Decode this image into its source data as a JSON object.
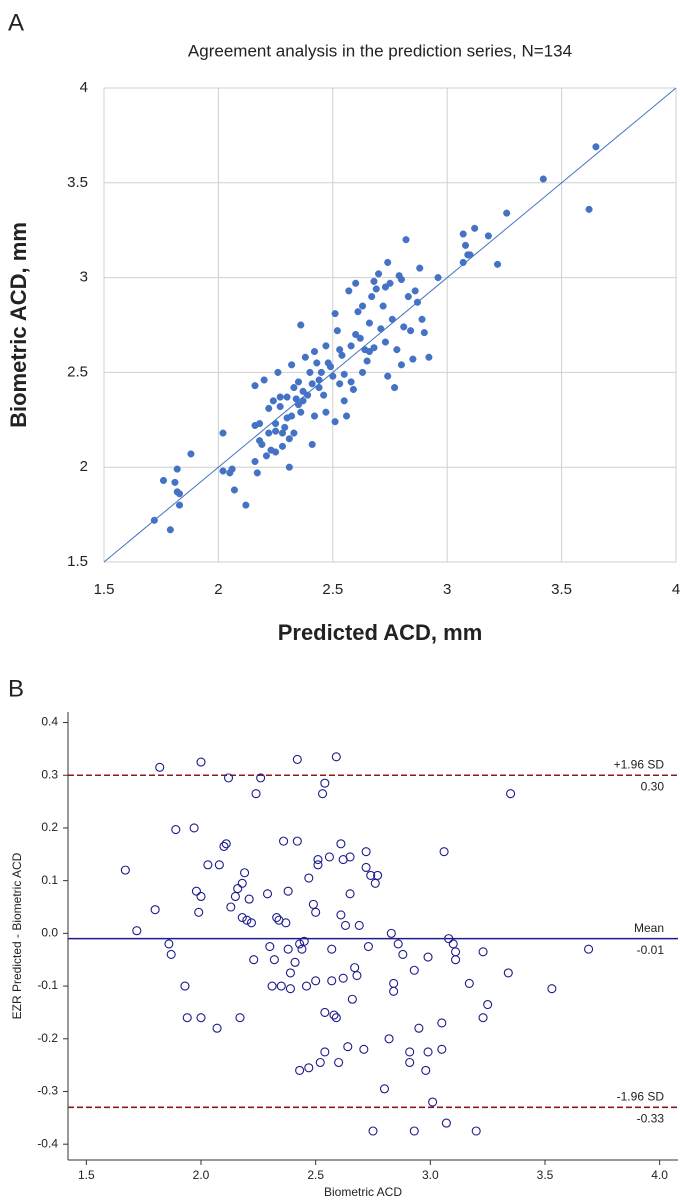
{
  "chart_data": [
    {
      "type": "scatter",
      "panel_label": "A",
      "title": "Agreement analysis in the prediction series, N=134",
      "xlabel": "Predicted ACD, mm",
      "ylabel": "Biometric ACD, mm",
      "xlim": [
        1.5,
        4
      ],
      "ylim": [
        1.5,
        4
      ],
      "xticks": [
        1.5,
        2,
        2.5,
        3,
        3.5,
        4
      ],
      "yticks": [
        1.5,
        2,
        2.5,
        3,
        3.5,
        4
      ],
      "grid": true,
      "identity_line": true,
      "marker_filled": true,
      "color": "#4472c4",
      "x": [
        1.72,
        1.79,
        1.76,
        1.81,
        1.82,
        1.82,
        1.83,
        1.83,
        1.88,
        2.02,
        2.02,
        2.05,
        2.06,
        2.07,
        2.12,
        2.16,
        2.16,
        2.17,
        2.18,
        2.18,
        2.19,
        2.2,
        2.21,
        2.22,
        2.22,
        2.23,
        2.24,
        2.25,
        2.25,
        2.26,
        2.27,
        2.27,
        2.28,
        2.28,
        2.29,
        2.3,
        2.31,
        2.31,
        2.32,
        2.32,
        2.33,
        2.34,
        2.35,
        2.35,
        2.36,
        2.36,
        2.37,
        2.38,
        2.39,
        2.4,
        2.41,
        2.41,
        2.42,
        2.42,
        2.43,
        2.44,
        2.45,
        2.46,
        2.47,
        2.49,
        2.5,
        2.51,
        2.51,
        2.52,
        2.53,
        2.54,
        2.55,
        2.55,
        2.56,
        2.57,
        2.58,
        2.59,
        2.6,
        2.61,
        2.62,
        2.63,
        2.64,
        2.65,
        2.66,
        2.67,
        2.68,
        2.69,
        2.7,
        2.71,
        2.72,
        2.73,
        2.74,
        2.74,
        2.75,
        2.76,
        2.77,
        2.78,
        2.79,
        2.8,
        2.81,
        2.82,
        2.83,
        2.84,
        2.85,
        2.86,
        2.87,
        2.88,
        2.89,
        2.9,
        2.92,
        2.96,
        3.07,
        3.07,
        3.08,
        3.09,
        3.1,
        3.12,
        3.18,
        3.22,
        3.26,
        3.42,
        3.62,
        3.65,
        2.3,
        2.44,
        2.58,
        2.6,
        2.68,
        2.47,
        2.37,
        2.53,
        2.63,
        2.8,
        2.73,
        2.66,
        2.48,
        2.33,
        2.16,
        2.25
      ],
      "values": [
        1.72,
        1.67,
        1.93,
        1.92,
        1.99,
        1.87,
        1.86,
        1.8,
        2.07,
        2.18,
        1.98,
        1.97,
        1.99,
        1.88,
        1.8,
        2.03,
        2.43,
        1.97,
        2.23,
        2.14,
        2.12,
        2.46,
        2.06,
        2.18,
        2.31,
        2.09,
        2.35,
        2.19,
        2.23,
        2.5,
        2.37,
        2.32,
        2.18,
        2.11,
        2.21,
        2.37,
        2.0,
        2.15,
        2.27,
        2.54,
        2.42,
        2.36,
        2.45,
        2.33,
        2.29,
        2.75,
        2.4,
        2.58,
        2.38,
        2.5,
        2.12,
        2.44,
        2.61,
        2.27,
        2.55,
        2.46,
        2.5,
        2.38,
        2.29,
        2.53,
        2.48,
        2.81,
        2.24,
        2.72,
        2.44,
        2.59,
        2.35,
        2.49,
        2.27,
        2.93,
        2.64,
        2.41,
        2.7,
        2.82,
        2.68,
        2.5,
        2.62,
        2.56,
        2.76,
        2.9,
        2.63,
        2.94,
        3.02,
        2.73,
        2.85,
        2.66,
        2.48,
        3.08,
        2.97,
        2.78,
        2.42,
        2.62,
        3.01,
        2.54,
        2.74,
        3.2,
        2.9,
        2.72,
        2.57,
        2.93,
        2.87,
        3.05,
        2.78,
        2.71,
        2.58,
        3.0,
        3.08,
        3.23,
        3.17,
        3.12,
        3.12,
        3.26,
        3.22,
        3.07,
        3.34,
        3.52,
        3.36,
        3.69,
        2.26,
        2.42,
        2.45,
        2.97,
        2.98,
        2.64,
        2.35,
        2.62,
        2.85,
        2.99,
        2.95,
        2.61,
        2.55,
        2.18,
        2.22,
        2.08
      ]
    },
    {
      "type": "scatter",
      "panel_label": "B",
      "xlabel": "Biometric ACD",
      "ylabel": "EZR Predicted - Biometric ACD",
      "xlim": [
        1.42,
        4.08
      ],
      "ylim": [
        -0.43,
        0.42
      ],
      "xticks": [
        1.5,
        {
          "value": 2,
          "label": "2.0"
        },
        2.5,
        {
          "value": 3,
          "label": "3.0"
        },
        3.5,
        {
          "value": 4,
          "label": "4.0"
        }
      ],
      "yticks": [
        0.4,
        0.3,
        0.2,
        0.1,
        {
          "value": 0,
          "label": "0.0"
        },
        -0.1,
        -0.2,
        -0.3,
        -0.4
      ],
      "grid": false,
      "identity_line": false,
      "marker_filled": false,
      "color": "#1c1c8c",
      "hlines": [
        {
          "label": "+1.96 SD",
          "value": 0.3,
          "value_label": "0.30",
          "color": "#8b1a1a",
          "dashed": true
        },
        {
          "label": "Mean",
          "value": -0.01,
          "value_label": "-0.01",
          "color": "#1c1c8c",
          "dashed": false
        },
        {
          "label": "-1.96 SD",
          "value": -0.33,
          "value_label": "-0.33",
          "color": "#8b1a1a",
          "dashed": true
        }
      ],
      "x": [
        1.67,
        1.72,
        1.8,
        1.82,
        1.86,
        1.87,
        1.89,
        1.93,
        1.94,
        1.97,
        1.98,
        1.99,
        2.0,
        2.0,
        2.0,
        2.03,
        2.07,
        2.08,
        2.1,
        2.11,
        2.12,
        2.13,
        2.15,
        2.16,
        2.17,
        2.18,
        2.18,
        2.19,
        2.2,
        2.21,
        2.22,
        2.23,
        2.24,
        2.26,
        2.29,
        2.3,
        2.31,
        2.32,
        2.33,
        2.34,
        2.35,
        2.36,
        2.37,
        2.38,
        2.38,
        2.39,
        2.39,
        2.41,
        2.42,
        2.42,
        2.43,
        2.43,
        2.44,
        2.45,
        2.46,
        2.47,
        2.47,
        2.49,
        2.5,
        2.5,
        2.51,
        2.51,
        2.52,
        2.53,
        2.54,
        2.54,
        2.54,
        2.56,
        2.57,
        2.57,
        2.58,
        2.59,
        2.59,
        2.6,
        2.61,
        2.61,
        2.62,
        2.62,
        2.63,
        2.64,
        2.65,
        2.65,
        2.66,
        2.67,
        2.68,
        2.69,
        2.71,
        2.72,
        2.72,
        2.73,
        2.74,
        2.75,
        2.76,
        2.77,
        2.8,
        2.82,
        2.83,
        2.84,
        2.84,
        2.86,
        2.88,
        2.91,
        2.91,
        2.93,
        2.93,
        2.95,
        2.98,
        2.99,
        2.99,
        3.01,
        3.05,
        3.05,
        3.06,
        3.07,
        3.08,
        3.1,
        3.11,
        3.11,
        3.17,
        3.2,
        3.23,
        3.23,
        3.25,
        3.34,
        3.35,
        3.53,
        3.69
      ],
      "values": [
        0.12,
        0.005,
        0.045,
        0.315,
        -0.02,
        -0.04,
        0.197,
        -0.1,
        -0.16,
        0.2,
        0.08,
        0.04,
        0.07,
        0.325,
        -0.16,
        0.13,
        -0.18,
        0.13,
        0.165,
        0.17,
        0.295,
        0.05,
        0.07,
        0.085,
        -0.16,
        0.095,
        0.03,
        0.115,
        0.025,
        0.065,
        0.02,
        -0.05,
        0.265,
        0.295,
        0.075,
        -0.025,
        -0.1,
        -0.05,
        0.03,
        0.025,
        -0.1,
        0.175,
        0.02,
        0.08,
        -0.03,
        -0.075,
        -0.105,
        -0.055,
        0.175,
        0.33,
        -0.26,
        -0.02,
        -0.03,
        -0.015,
        -0.1,
        0.105,
        -0.255,
        0.055,
        0.04,
        -0.09,
        0.13,
        0.14,
        -0.245,
        0.265,
        0.285,
        -0.15,
        -0.225,
        0.145,
        -0.03,
        -0.09,
        -0.155,
        0.335,
        -0.16,
        -0.245,
        0.17,
        0.035,
        0.14,
        -0.085,
        0.015,
        -0.215,
        0.075,
        0.145,
        -0.125,
        -0.065,
        -0.08,
        0.015,
        -0.22,
        0.155,
        0.125,
        -0.025,
        0.11,
        -0.375,
        0.095,
        0.11,
        -0.295,
        -0.2,
        0.0,
        -0.095,
        -0.11,
        -0.02,
        -0.04,
        -0.225,
        -0.245,
        -0.375,
        -0.07,
        -0.18,
        -0.26,
        -0.045,
        -0.225,
        -0.32,
        -0.17,
        -0.22,
        0.155,
        -0.36,
        -0.01,
        -0.02,
        -0.035,
        -0.05,
        -0.095,
        -0.375,
        -0.16,
        -0.035,
        -0.135,
        -0.075,
        0.265,
        -0.105,
        -0.03
      ]
    }
  ]
}
